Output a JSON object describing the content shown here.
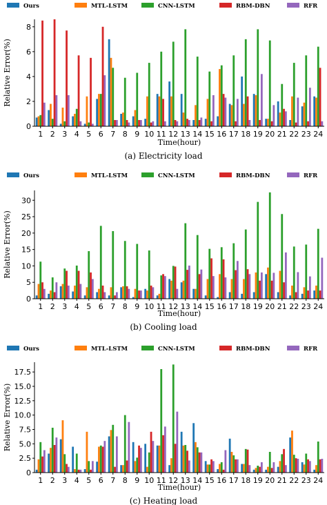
{
  "colors": [
    "#1f77b4",
    "#ff7f0e",
    "#2ca02c",
    "#d62728",
    "#9467bd"
  ],
  "chart_data": [
    {
      "type": "bar",
      "caption": "(a)  Electricity load",
      "xlabel": "Time(hour)",
      "ylabel": "Relative Error(%)",
      "ylim": [
        0,
        8.6
      ],
      "yticks": [
        0,
        2,
        4,
        6,
        8
      ],
      "legend_position": "top",
      "grid": false,
      "categories": [
        "1",
        "2",
        "3",
        "4",
        "5",
        "6",
        "7",
        "8",
        "9",
        "10",
        "11",
        "12",
        "13",
        "14",
        "15",
        "16",
        "17",
        "18",
        "19",
        "20",
        "21",
        "22",
        "23",
        "24"
      ],
      "series": [
        {
          "name": "Ours",
          "values": [
            0.7,
            1.3,
            0.2,
            0.8,
            0.2,
            2.2,
            7.0,
            1.0,
            0.8,
            0.6,
            2.6,
            3.6,
            2.6,
            0.5,
            0.6,
            0.8,
            1.8,
            4.0,
            2.6,
            0.6,
            2.0,
            0.5,
            1.6,
            2.4
          ]
        },
        {
          "name": "MTL-LSTM",
          "values": [
            0.8,
            1.8,
            1.5,
            1.0,
            2.4,
            2.6,
            5.5,
            1.1,
            1.3,
            2.4,
            2.4,
            2.4,
            1.1,
            1.7,
            2.2,
            4.6,
            1.7,
            1.8,
            2.5,
            0.6,
            1.1,
            2.4,
            1.9,
            2.3
          ]
        },
        {
          "name": "CNN-LSTM",
          "values": [
            0.9,
            0.6,
            0.4,
            1.4,
            0.3,
            2.6,
            4.7,
            3.9,
            4.3,
            5.1,
            6.0,
            6.8,
            7.8,
            5.6,
            4.4,
            4.9,
            5.7,
            7.0,
            7.8,
            6.9,
            3.4,
            5.1,
            5.7,
            6.4
          ]
        },
        {
          "name": "RBM-DBN",
          "values": [
            8.5,
            8.6,
            7.7,
            5.7,
            5.5,
            8.0,
            0.5,
            0.5,
            0.5,
            0.3,
            2.2,
            0.5,
            0.6,
            0.5,
            0.4,
            2.6,
            0.4,
            2.4,
            0.5,
            0.4,
            1.4,
            0.3,
            0.4,
            4.7
          ]
        },
        {
          "name": "RFR",
          "values": [
            1.9,
            2.5,
            2.5,
            0.4,
            0.2,
            4.1,
            0.5,
            0.3,
            0.5,
            0.4,
            0.4,
            0.4,
            0.5,
            0.7,
            2.5,
            2.3,
            2.2,
            0.5,
            4.2,
            1.7,
            1.2,
            2.3,
            3.1,
            0.4
          ]
        }
      ]
    },
    {
      "type": "bar",
      "caption": "(b)  Cooling load",
      "xlabel": "Time(hour)",
      "ylabel": "Relative Error(%)",
      "ylim": [
        0,
        33
      ],
      "yticks": [
        0,
        5,
        10,
        15,
        20,
        25,
        30
      ],
      "legend_position": "top",
      "grid": false,
      "categories": [
        "1",
        "2",
        "3",
        "4",
        "5",
        "6",
        "7",
        "8",
        "9",
        "10",
        "11",
        "12",
        "13",
        "14",
        "15",
        "16",
        "17",
        "18",
        "19",
        "20",
        "21",
        "22",
        "23",
        "24"
      ],
      "series": [
        {
          "name": "Ours",
          "values": [
            1.0,
            1.5,
            3.8,
            2.2,
            1.0,
            2.0,
            1.0,
            3.5,
            0.5,
            3.0,
            1.0,
            6.0,
            5.0,
            3.0,
            1.0,
            0.5,
            2.0,
            1.5,
            2.0,
            7.5,
            2.0,
            1.0,
            1.5,
            2.5
          ]
        },
        {
          "name": "MTL-LSTM",
          "values": [
            4.5,
            2.5,
            4.5,
            4.0,
            3.5,
            3.0,
            3.5,
            3.8,
            3.0,
            2.5,
            1.5,
            5.5,
            5.5,
            3.0,
            6.0,
            7.5,
            6.0,
            6.0,
            8.0,
            9.5,
            8.5,
            4.0,
            3.5,
            4.0
          ]
        },
        {
          "name": "CNN-LSTM",
          "values": [
            11.3,
            6.5,
            9.2,
            10.1,
            14.5,
            22.2,
            20.6,
            17.6,
            16.7,
            14.7,
            7.1,
            10.0,
            23.0,
            19.4,
            15.2,
            15.7,
            16.9,
            21.1,
            29.5,
            32.4,
            25.8,
            15.9,
            16.5,
            21.3
          ]
        },
        {
          "name": "RBM-DBN",
          "values": [
            5.0,
            2.0,
            8.5,
            8.5,
            8.0,
            4.0,
            1.0,
            3.8,
            2.5,
            4.0,
            7.5,
            9.8,
            8.8,
            7.5,
            12.3,
            12.0,
            8.7,
            9.0,
            5.5,
            5.5,
            5.0,
            2.0,
            2.5,
            2.5
          ]
        },
        {
          "name": "RFR",
          "values": [
            3.0,
            5.0,
            4.0,
            4.5,
            6.0,
            2.0,
            2.0,
            3.0,
            2.5,
            3.5,
            6.9,
            3.0,
            10.1,
            8.9,
            6.9,
            6.5,
            11.5,
            7.5,
            8.0,
            7.9,
            14.1,
            8.1,
            6.8,
            12.5
          ]
        }
      ]
    },
    {
      "type": "bar",
      "caption": "(c)  Heating load",
      "xlabel": "Time(hour)",
      "ylabel": "Relative Error(%)",
      "ylim": [
        0,
        19.2
      ],
      "yticks": [
        0,
        2.5,
        5.0,
        7.5,
        10.0,
        12.5,
        15.0,
        17.5
      ],
      "ytick_labels": [
        "0",
        "2.5",
        "5.0",
        "7.5",
        "10.0",
        "12.5",
        "15.0",
        "17.5"
      ],
      "legend_position": "top",
      "grid": false,
      "categories": [
        "1",
        "2",
        "3",
        "4",
        "5",
        "6",
        "7",
        "8",
        "9",
        "10",
        "11",
        "12",
        "13",
        "14",
        "15",
        "16",
        "17",
        "18",
        "19",
        "20",
        "21",
        "22",
        "23",
        "24"
      ],
      "series": [
        {
          "name": "Ours",
          "values": [
            0.5,
            3.3,
            5.8,
            4.5,
            0.6,
            1.9,
            6.3,
            1.3,
            5.3,
            5.0,
            4.7,
            1.3,
            7.1,
            8.6,
            2.0,
            0.6,
            5.9,
            1.5,
            0.5,
            0.5,
            1.0,
            6.1,
            1.8,
            0.5
          ]
        },
        {
          "name": "MTL-LSTM",
          "values": [
            2.3,
            4.3,
            9.1,
            0.6,
            7.1,
            4.5,
            7.4,
            1.3,
            2.0,
            1.0,
            4.7,
            2.5,
            4.7,
            5.3,
            1.4,
            1.5,
            3.6,
            1.5,
            0.8,
            1.0,
            2.0,
            7.3,
            1.4,
            1.3
          ]
        },
        {
          "name": "CNN-LSTM",
          "values": [
            5.3,
            7.8,
            3.2,
            3.3,
            2.0,
            4.7,
            8.3,
            10.0,
            2.6,
            3.5,
            18.0,
            18.8,
            4.8,
            4.4,
            1.4,
            1.8,
            3.0,
            4.1,
            1.2,
            3.6,
            3.2,
            3.1,
            3.3,
            5.4
          ]
        },
        {
          "name": "RBM-DBN",
          "values": [
            2.8,
            4.8,
            1.5,
            0.5,
            0.5,
            4.5,
            1.0,
            2.1,
            4.7,
            7.1,
            6.5,
            5.0,
            3.8,
            3.5,
            2.3,
            0.5,
            2.3,
            4.0,
            1.0,
            0.8,
            4.1,
            2.5,
            2.3,
            2.3
          ]
        },
        {
          "name": "RFR",
          "values": [
            3.9,
            6.1,
            1.0,
            0.5,
            2.0,
            5.5,
            6.3,
            8.8,
            4.3,
            5.5,
            8.0,
            10.6,
            2.1,
            3.5,
            2.0,
            3.9,
            2.3,
            1.3,
            1.8,
            1.8,
            1.3,
            2.4,
            2.0,
            2.4
          ]
        }
      ]
    }
  ]
}
